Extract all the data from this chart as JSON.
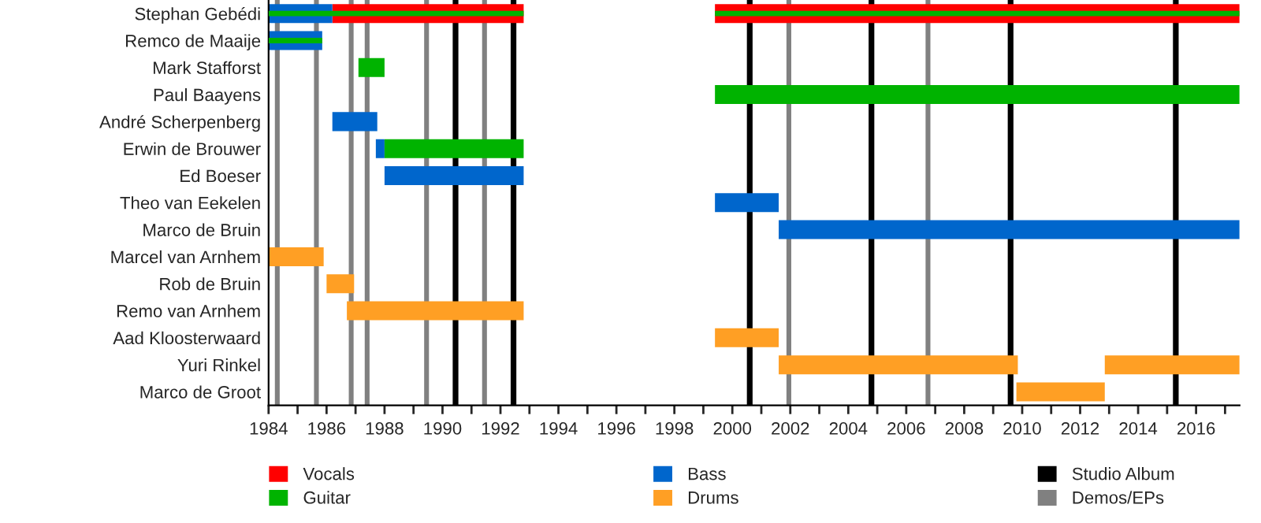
{
  "chart_data": {
    "type": "bar",
    "orientation": "horizontal",
    "categories": [
      "Stephan Gebédi",
      "Remco de Maaije",
      "Mark Stafforst",
      "Paul Baayens",
      "André Scherpenberg",
      "Erwin de Brouwer",
      "Ed Boeser",
      "Theo van Eekelen",
      "Marco de Bruin",
      "Marcel van Arnhem",
      "Rob de Bruin",
      "Remo van Arnhem",
      "Aad Kloosterwaard",
      "Yuri Rinkel",
      "Marco de Groot"
    ],
    "series": [
      {
        "name": "Vocals",
        "color": "#ff0000",
        "base": [
          1986.2,
          null,
          null,
          null,
          null,
          null,
          null,
          null,
          null,
          null,
          null,
          null,
          null,
          null,
          null
        ],
        "values": [
          6.6,
          null,
          null,
          null,
          null,
          null,
          null,
          null,
          null,
          null,
          null,
          null,
          null,
          null,
          null
        ]
      },
      {
        "color": "#ff0000",
        "base": [
          1999.4,
          null,
          null,
          null,
          null,
          null,
          null,
          null,
          null,
          null,
          null,
          null,
          null,
          null,
          null
        ],
        "values": [
          18.1,
          null,
          null,
          null,
          null,
          null,
          null,
          null,
          null,
          null,
          null,
          null,
          null,
          null,
          null
        ]
      },
      {
        "name": "Bass",
        "color": "#0066cc",
        "base": [
          1984,
          1984,
          null,
          null,
          1986.2,
          1987.7,
          1988,
          1999.4,
          2001.6,
          null,
          null,
          null,
          null,
          null,
          null
        ],
        "values": [
          2.2,
          1.85,
          null,
          null,
          1.55,
          0.3,
          4.8,
          2.2,
          15.9,
          null,
          null,
          null,
          null,
          null,
          null
        ]
      },
      {
        "name": "Guitar",
        "color": "#00b300",
        "base": [
          1984,
          1984,
          1987.1,
          1999.4,
          null,
          1988,
          null,
          null,
          null,
          null,
          null,
          null,
          null,
          null,
          null
        ],
        "values": [
          8.8,
          1.85,
          0.9,
          18.1,
          null,
          4.8,
          null,
          null,
          null,
          null,
          null,
          null,
          null,
          null,
          null
        ]
      },
      {
        "color": "#00b300",
        "base": [
          1999.4,
          null,
          null,
          null,
          null,
          null,
          null,
          null,
          null,
          null,
          null,
          null,
          null,
          null,
          null
        ],
        "values": [
          18.1,
          null,
          null,
          null,
          null,
          null,
          null,
          null,
          null,
          null,
          null,
          null,
          null,
          null,
          null
        ]
      },
      {
        "name": "Drums",
        "color": "#ff9f24",
        "base": [
          null,
          null,
          null,
          null,
          null,
          null,
          null,
          null,
          null,
          1984,
          1986,
          1986.7,
          1999.4,
          2001.6,
          2009.8
        ],
        "values": [
          null,
          null,
          null,
          null,
          null,
          null,
          null,
          null,
          null,
          1.9,
          0.95,
          6.1,
          2.2,
          8.25,
          3.05
        ]
      },
      {
        "color": "#ff9f24",
        "base": [
          null,
          null,
          null,
          null,
          null,
          null,
          null,
          null,
          null,
          null,
          null,
          null,
          null,
          2012.85,
          null
        ],
        "values": [
          null,
          null,
          null,
          null,
          null,
          null,
          null,
          null,
          null,
          null,
          null,
          null,
          null,
          4.65,
          null
        ]
      }
    ],
    "ref_lines": [
      {
        "axis": "x",
        "value": 1984.3,
        "label": "Demos/EPs",
        "color": "#808080"
      },
      {
        "axis": "x",
        "value": 1985.65,
        "color": "#808080"
      },
      {
        "axis": "x",
        "value": 1986.85,
        "color": "#808080"
      },
      {
        "axis": "x",
        "value": 1987.4,
        "color": "#808080"
      },
      {
        "axis": "x",
        "value": 1989.45,
        "color": "#808080"
      },
      {
        "axis": "x",
        "value": 1990.45,
        "label": "Studio Album",
        "color": "#000000"
      },
      {
        "axis": "x",
        "value": 1991.45,
        "color": "#808080"
      },
      {
        "axis": "x",
        "value": 1992.45,
        "color": "#000000"
      },
      {
        "axis": "x",
        "value": 2000.6,
        "color": "#000000"
      },
      {
        "axis": "x",
        "value": 2001.95,
        "color": "#808080"
      },
      {
        "axis": "x",
        "value": 2004.8,
        "color": "#000000"
      },
      {
        "axis": "x",
        "value": 2006.75,
        "color": "#808080"
      },
      {
        "axis": "x",
        "value": 2009.6,
        "color": "#000000"
      },
      {
        "axis": "x",
        "value": 2015.3,
        "color": "#000000"
      }
    ],
    "xlim": [
      1984,
      2017.5
    ],
    "xticks": [
      1984,
      {
        "value": 1985,
        "label": null
      },
      1986,
      {
        "value": 1987,
        "label": null
      },
      1988,
      {
        "value": 1989,
        "label": null
      },
      1990,
      {
        "value": 1991,
        "label": null
      },
      1992,
      {
        "value": 1993,
        "label": null
      },
      1994,
      {
        "value": 1995,
        "label": null
      },
      1996,
      {
        "value": 1997,
        "label": null
      },
      1998,
      {
        "value": 1999,
        "label": null
      },
      2000,
      {
        "value": 2001,
        "label": null
      },
      2002,
      {
        "value": 2003,
        "label": null
      },
      2004,
      {
        "value": 2005,
        "label": null
      },
      2006,
      {
        "value": 2007,
        "label": null
      },
      2008,
      {
        "value": 2009,
        "label": null
      },
      2010,
      {
        "value": 2011,
        "label": null
      },
      2012,
      {
        "value": 2013,
        "label": null
      },
      2014,
      {
        "value": 2015,
        "label": null
      },
      2016,
      {
        "value": 2017,
        "label": null
      }
    ],
    "legend": "bottom",
    "grid": false
  }
}
